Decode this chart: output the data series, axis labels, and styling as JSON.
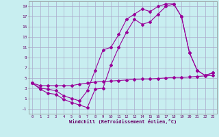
{
  "xlabel": "Windchill (Refroidissement éolien,°C)",
  "bg_color": "#c8eef0",
  "line_color": "#990099",
  "grid_color": "#aaaacc",
  "xlim": [
    -0.5,
    23.5
  ],
  "ylim": [
    -2,
    20
  ],
  "xticks": [
    0,
    1,
    2,
    3,
    4,
    5,
    6,
    7,
    8,
    9,
    10,
    11,
    12,
    13,
    14,
    15,
    16,
    17,
    18,
    19,
    20,
    21,
    22,
    23
  ],
  "yticks": [
    -1,
    1,
    3,
    5,
    7,
    9,
    11,
    13,
    15,
    17,
    19
  ],
  "curve1_x": [
    0,
    1,
    2,
    3,
    4,
    5,
    6,
    7,
    8,
    9,
    10,
    11,
    12,
    13,
    14,
    15,
    16,
    17,
    18,
    19,
    20,
    21,
    22,
    23
  ],
  "curve1_y": [
    4.0,
    3.5,
    3.5,
    3.5,
    3.5,
    3.5,
    3.8,
    4.0,
    4.2,
    4.3,
    4.4,
    4.5,
    4.6,
    4.7,
    4.8,
    4.8,
    4.9,
    5.0,
    5.1,
    5.1,
    5.2,
    5.3,
    5.4,
    5.5
  ],
  "curve2_x": [
    0,
    1,
    2,
    3,
    4,
    5,
    6,
    7,
    8,
    9,
    10,
    11,
    12,
    13,
    14,
    15,
    16,
    17,
    18,
    19,
    20,
    21,
    22,
    23
  ],
  "curve2_y": [
    4.0,
    2.8,
    2.0,
    1.8,
    0.8,
    0.2,
    -0.3,
    -0.8,
    2.8,
    3.0,
    7.5,
    11.0,
    14.0,
    16.5,
    15.5,
    16.0,
    17.5,
    19.0,
    19.5,
    17.0,
    10.0,
    6.5,
    5.5,
    6.0
  ],
  "curve3_x": [
    0,
    1,
    2,
    3,
    4,
    5,
    6,
    7,
    8,
    9,
    10,
    11,
    12,
    13,
    14,
    15,
    16,
    17,
    18,
    19,
    20,
    21,
    22,
    23
  ],
  "curve3_y": [
    4.0,
    3.0,
    2.8,
    2.5,
    1.5,
    1.0,
    0.5,
    2.5,
    6.5,
    10.5,
    11.0,
    13.5,
    16.5,
    17.5,
    18.5,
    18.0,
    19.0,
    19.5,
    19.5,
    17.0,
    10.0,
    6.5,
    5.5,
    6.0
  ]
}
